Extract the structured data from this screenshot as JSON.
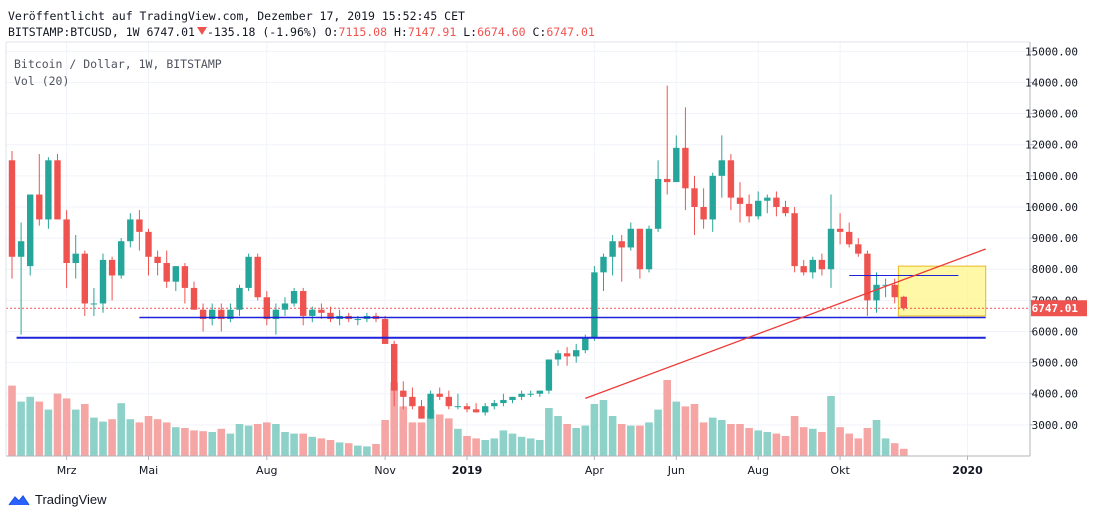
{
  "header": {
    "published": "Veröffentlicht auf TradingView.com, Dezember 17, 2019 15:52:45 CET",
    "symbol": "BITSTAMP:BTCUSD, 1W",
    "last": "6747.01",
    "change": "-135.18 (-1.96%)",
    "o_label": "O:",
    "o_value": "7115.08",
    "h_label": "H:",
    "h_value": "7147.91",
    "l_label": "L:",
    "l_value": "6674.60",
    "c_label": "C:",
    "c_value": "6747.01"
  },
  "legend": {
    "title": "Bitcoin / Dollar, 1W, BITSTAMP",
    "volume": "Vol (20)"
  },
  "footer": {
    "brand": "TradingView"
  },
  "colors": {
    "up": "#26a69a",
    "down": "#ef5350",
    "up_vol": "#8ed1c8",
    "down_vol": "#f5a5a3",
    "support": "#1e22d8",
    "trend": "#ef3b36",
    "box": "#fff58a",
    "box_border": "#e8b923",
    "last_price": "#ef5350"
  },
  "chart_data": {
    "type": "candlestick",
    "title": "Bitcoin / Dollar, 1W, BITSTAMP",
    "xlabel": "",
    "ylabel": "",
    "ylim": [
      2000,
      15300
    ],
    "y_ticks": [
      3000,
      4000,
      5000,
      6000,
      7000,
      8000,
      9000,
      10000,
      11000,
      12000,
      13000,
      14000,
      15000
    ],
    "y_tick_labels": [
      "3000.00",
      "4000.00",
      "5000.00",
      "6000.00",
      "7000.00",
      "8000.00",
      "9000.00",
      "10000.00",
      "11000.00",
      "12000.00",
      "13000.00",
      "14000.00",
      "15000.00"
    ],
    "x_labels": [
      {
        "label": "Mrz",
        "index": 6
      },
      {
        "label": "Mai",
        "index": 15
      },
      {
        "label": "Aug",
        "index": 28
      },
      {
        "label": "Nov",
        "index": 41
      },
      {
        "label": "2019",
        "index": 50
      },
      {
        "label": "Apr",
        "index": 64
      },
      {
        "label": "Jun",
        "index": 73
      },
      {
        "label": "Aug",
        "index": 82
      },
      {
        "label": "Okt",
        "index": 91
      },
      {
        "label": "2020",
        "index": 105
      }
    ],
    "last_price_label": "6747.01",
    "candles": [
      {
        "o": 11500,
        "h": 11800,
        "l": 7700,
        "c": 8400,
        "v": 0.88
      },
      {
        "o": 8400,
        "h": 9500,
        "l": 5900,
        "c": 8900,
        "v": 0.68
      },
      {
        "o": 8100,
        "h": 10400,
        "l": 7800,
        "c": 10400,
        "v": 0.74
      },
      {
        "o": 10400,
        "h": 11700,
        "l": 9400,
        "c": 9600,
        "v": 0.68
      },
      {
        "o": 9600,
        "h": 11600,
        "l": 9300,
        "c": 11500,
        "v": 0.58
      },
      {
        "o": 11500,
        "h": 11700,
        "l": 9600,
        "c": 9600,
        "v": 0.78
      },
      {
        "o": 9600,
        "h": 9900,
        "l": 7400,
        "c": 8200,
        "v": 0.72
      },
      {
        "o": 8200,
        "h": 9100,
        "l": 7700,
        "c": 8500,
        "v": 0.58
      },
      {
        "o": 8500,
        "h": 8600,
        "l": 6500,
        "c": 6900,
        "v": 0.65
      },
      {
        "o": 6900,
        "h": 7400,
        "l": 6500,
        "c": 6900,
        "v": 0.48
      },
      {
        "o": 6900,
        "h": 8500,
        "l": 6600,
        "c": 8300,
        "v": 0.43
      },
      {
        "o": 8300,
        "h": 8400,
        "l": 7000,
        "c": 7800,
        "v": 0.46
      },
      {
        "o": 7800,
        "h": 9000,
        "l": 7700,
        "c": 8900,
        "v": 0.66
      },
      {
        "o": 8900,
        "h": 9800,
        "l": 8700,
        "c": 9600,
        "v": 0.46
      },
      {
        "o": 9600,
        "h": 9900,
        "l": 8600,
        "c": 9200,
        "v": 0.42
      },
      {
        "o": 9200,
        "h": 9300,
        "l": 7800,
        "c": 8400,
        "v": 0.5
      },
      {
        "o": 8400,
        "h": 8600,
        "l": 7800,
        "c": 8200,
        "v": 0.46
      },
      {
        "o": 8200,
        "h": 8600,
        "l": 7400,
        "c": 7600,
        "v": 0.42
      },
      {
        "o": 7600,
        "h": 8100,
        "l": 7300,
        "c": 8100,
        "v": 0.36
      },
      {
        "o": 8100,
        "h": 8200,
        "l": 6900,
        "c": 7400,
        "v": 0.35
      },
      {
        "o": 7400,
        "h": 7600,
        "l": 6700,
        "c": 6700,
        "v": 0.32
      },
      {
        "o": 6700,
        "h": 6900,
        "l": 6000,
        "c": 6400,
        "v": 0.31
      },
      {
        "o": 6400,
        "h": 6900,
        "l": 6200,
        "c": 6700,
        "v": 0.3
      },
      {
        "o": 6700,
        "h": 6900,
        "l": 6000,
        "c": 6400,
        "v": 0.34
      },
      {
        "o": 6400,
        "h": 6900,
        "l": 6300,
        "c": 6700,
        "v": 0.28
      },
      {
        "o": 6700,
        "h": 7500,
        "l": 6500,
        "c": 7400,
        "v": 0.4
      },
      {
        "o": 7400,
        "h": 8500,
        "l": 7300,
        "c": 8400,
        "v": 0.38
      },
      {
        "o": 8400,
        "h": 8500,
        "l": 7000,
        "c": 7100,
        "v": 0.4
      },
      {
        "o": 7100,
        "h": 7300,
        "l": 6200,
        "c": 6400,
        "v": 0.42
      },
      {
        "o": 6400,
        "h": 6900,
        "l": 5900,
        "c": 6700,
        "v": 0.4
      },
      {
        "o": 6700,
        "h": 7100,
        "l": 6500,
        "c": 6900,
        "v": 0.3
      },
      {
        "o": 6900,
        "h": 7400,
        "l": 6800,
        "c": 7300,
        "v": 0.28
      },
      {
        "o": 7300,
        "h": 7400,
        "l": 6200,
        "c": 6500,
        "v": 0.28
      },
      {
        "o": 6500,
        "h": 6800,
        "l": 6300,
        "c": 6700,
        "v": 0.24
      },
      {
        "o": 6700,
        "h": 6900,
        "l": 6400,
        "c": 6600,
        "v": 0.22
      },
      {
        "o": 6600,
        "h": 6800,
        "l": 6300,
        "c": 6400,
        "v": 0.2
      },
      {
        "o": 6400,
        "h": 6700,
        "l": 6200,
        "c": 6500,
        "v": 0.17
      },
      {
        "o": 6500,
        "h": 6600,
        "l": 6300,
        "c": 6400,
        "v": 0.16
      },
      {
        "o": 6400,
        "h": 6500,
        "l": 6200,
        "c": 6400,
        "v": 0.13
      },
      {
        "o": 6400,
        "h": 6600,
        "l": 6300,
        "c": 6500,
        "v": 0.12
      },
      {
        "o": 6500,
        "h": 6600,
        "l": 6300,
        "c": 6400,
        "v": 0.15
      },
      {
        "o": 6400,
        "h": 6500,
        "l": 5600,
        "c": 5600,
        "v": 0.45
      },
      {
        "o": 5600,
        "h": 5700,
        "l": 3600,
        "c": 4100,
        "v": 0.92
      },
      {
        "o": 4100,
        "h": 4400,
        "l": 3500,
        "c": 3900,
        "v": 0.62
      },
      {
        "o": 3900,
        "h": 4200,
        "l": 3500,
        "c": 3600,
        "v": 0.42
      },
      {
        "o": 3600,
        "h": 3800,
        "l": 3200,
        "c": 3200,
        "v": 0.42
      },
      {
        "o": 3200,
        "h": 4100,
        "l": 3200,
        "c": 4000,
        "v": 0.58
      },
      {
        "o": 4000,
        "h": 4200,
        "l": 3800,
        "c": 3900,
        "v": 0.52
      },
      {
        "o": 3900,
        "h": 4100,
        "l": 3500,
        "c": 3600,
        "v": 0.47
      },
      {
        "o": 3600,
        "h": 4000,
        "l": 3500,
        "c": 3600,
        "v": 0.34
      },
      {
        "o": 3600,
        "h": 3700,
        "l": 3400,
        "c": 3500,
        "v": 0.25
      },
      {
        "o": 3500,
        "h": 3700,
        "l": 3400,
        "c": 3400,
        "v": 0.22
      },
      {
        "o": 3400,
        "h": 3700,
        "l": 3300,
        "c": 3600,
        "v": 0.2
      },
      {
        "o": 3600,
        "h": 3800,
        "l": 3500,
        "c": 3700,
        "v": 0.22
      },
      {
        "o": 3700,
        "h": 4000,
        "l": 3600,
        "c": 3800,
        "v": 0.32
      },
      {
        "o": 3800,
        "h": 3900,
        "l": 3700,
        "c": 3900,
        "v": 0.28
      },
      {
        "o": 3900,
        "h": 4100,
        "l": 3800,
        "c": 4000,
        "v": 0.24
      },
      {
        "o": 4000,
        "h": 4100,
        "l": 3900,
        "c": 4000,
        "v": 0.22
      },
      {
        "o": 4000,
        "h": 4100,
        "l": 3900,
        "c": 4100,
        "v": 0.2
      },
      {
        "o": 4100,
        "h": 5000,
        "l": 4000,
        "c": 5100,
        "v": 0.6
      },
      {
        "o": 5100,
        "h": 5400,
        "l": 4900,
        "c": 5300,
        "v": 0.5
      },
      {
        "o": 5300,
        "h": 5500,
        "l": 4900,
        "c": 5200,
        "v": 0.4
      },
      {
        "o": 5200,
        "h": 5600,
        "l": 5000,
        "c": 5400,
        "v": 0.35
      },
      {
        "o": 5400,
        "h": 5900,
        "l": 5300,
        "c": 5800,
        "v": 0.38
      },
      {
        "o": 5800,
        "h": 8100,
        "l": 5700,
        "c": 7900,
        "v": 0.65
      },
      {
        "o": 7900,
        "h": 8500,
        "l": 7300,
        "c": 8400,
        "v": 0.7
      },
      {
        "o": 8400,
        "h": 9100,
        "l": 7800,
        "c": 8900,
        "v": 0.5
      },
      {
        "o": 8900,
        "h": 9100,
        "l": 7600,
        "c": 8700,
        "v": 0.4
      },
      {
        "o": 8700,
        "h": 9500,
        "l": 8600,
        "c": 9300,
        "v": 0.38
      },
      {
        "o": 9300,
        "h": 9300,
        "l": 7700,
        "c": 8000,
        "v": 0.38
      },
      {
        "o": 8000,
        "h": 9400,
        "l": 7900,
        "c": 9300,
        "v": 0.42
      },
      {
        "o": 9300,
        "h": 11500,
        "l": 9200,
        "c": 10900,
        "v": 0.58
      },
      {
        "o": 10900,
        "h": 13900,
        "l": 10400,
        "c": 10800,
        "v": 0.95
      },
      {
        "o": 10800,
        "h": 12300,
        "l": 10800,
        "c": 11900,
        "v": 0.68
      },
      {
        "o": 11900,
        "h": 13200,
        "l": 9900,
        "c": 10600,
        "v": 0.62
      },
      {
        "o": 10600,
        "h": 11000,
        "l": 9100,
        "c": 10000,
        "v": 0.65
      },
      {
        "o": 10000,
        "h": 10600,
        "l": 9300,
        "c": 9600,
        "v": 0.42
      },
      {
        "o": 9600,
        "h": 11100,
        "l": 9200,
        "c": 11000,
        "v": 0.48
      },
      {
        "o": 11000,
        "h": 12300,
        "l": 10300,
        "c": 11500,
        "v": 0.45
      },
      {
        "o": 11500,
        "h": 11700,
        "l": 9900,
        "c": 10300,
        "v": 0.4
      },
      {
        "o": 10300,
        "h": 10800,
        "l": 9500,
        "c": 10100,
        "v": 0.4
      },
      {
        "o": 10100,
        "h": 10400,
        "l": 9500,
        "c": 9700,
        "v": 0.35
      },
      {
        "o": 9700,
        "h": 10500,
        "l": 9600,
        "c": 10200,
        "v": 0.32
      },
      {
        "o": 10200,
        "h": 10400,
        "l": 9800,
        "c": 10300,
        "v": 0.3
      },
      {
        "o": 10300,
        "h": 10500,
        "l": 9700,
        "c": 10000,
        "v": 0.28
      },
      {
        "o": 10000,
        "h": 10200,
        "l": 9700,
        "c": 9800,
        "v": 0.25
      },
      {
        "o": 9800,
        "h": 10000,
        "l": 7900,
        "c": 8100,
        "v": 0.5
      },
      {
        "o": 8100,
        "h": 8300,
        "l": 7800,
        "c": 7900,
        "v": 0.36
      },
      {
        "o": 7900,
        "h": 8400,
        "l": 7700,
        "c": 8300,
        "v": 0.34
      },
      {
        "o": 8300,
        "h": 8500,
        "l": 7800,
        "c": 8000,
        "v": 0.3
      },
      {
        "o": 8000,
        "h": 10400,
        "l": 7400,
        "c": 9300,
        "v": 0.75
      },
      {
        "o": 9300,
        "h": 9800,
        "l": 8800,
        "c": 9200,
        "v": 0.36
      },
      {
        "o": 9200,
        "h": 9500,
        "l": 8700,
        "c": 8800,
        "v": 0.28
      },
      {
        "o": 8800,
        "h": 9000,
        "l": 8400,
        "c": 8500,
        "v": 0.22
      },
      {
        "o": 8500,
        "h": 8600,
        "l": 6500,
        "c": 7000,
        "v": 0.35
      },
      {
        "o": 7000,
        "h": 7900,
        "l": 6600,
        "c": 7500,
        "v": 0.45
      },
      {
        "o": 7500,
        "h": 7700,
        "l": 7100,
        "c": 7500,
        "v": 0.22
      },
      {
        "o": 7500,
        "h": 7700,
        "l": 6900,
        "c": 7100,
        "v": 0.16
      },
      {
        "o": 7115,
        "h": 7148,
        "l": 6675,
        "c": 6747,
        "v": 0.09
      }
    ],
    "support_lines": [
      {
        "y": 5800,
        "from_index": 0.5,
        "to_index": 107
      },
      {
        "y": 6450,
        "from_index": 14,
        "to_index": 107
      }
    ],
    "trendline": {
      "from_index": 63,
      "from_y": 3850,
      "to_index": 107,
      "to_y": 8650
    },
    "short_line": {
      "y": 7800,
      "from_index": 92,
      "to_index": 104
    },
    "last_price_line": 6747.01,
    "highlight_box": {
      "from_index": 97.4,
      "to_index": 107,
      "y_low": 6500,
      "y_high": 8100
    }
  }
}
